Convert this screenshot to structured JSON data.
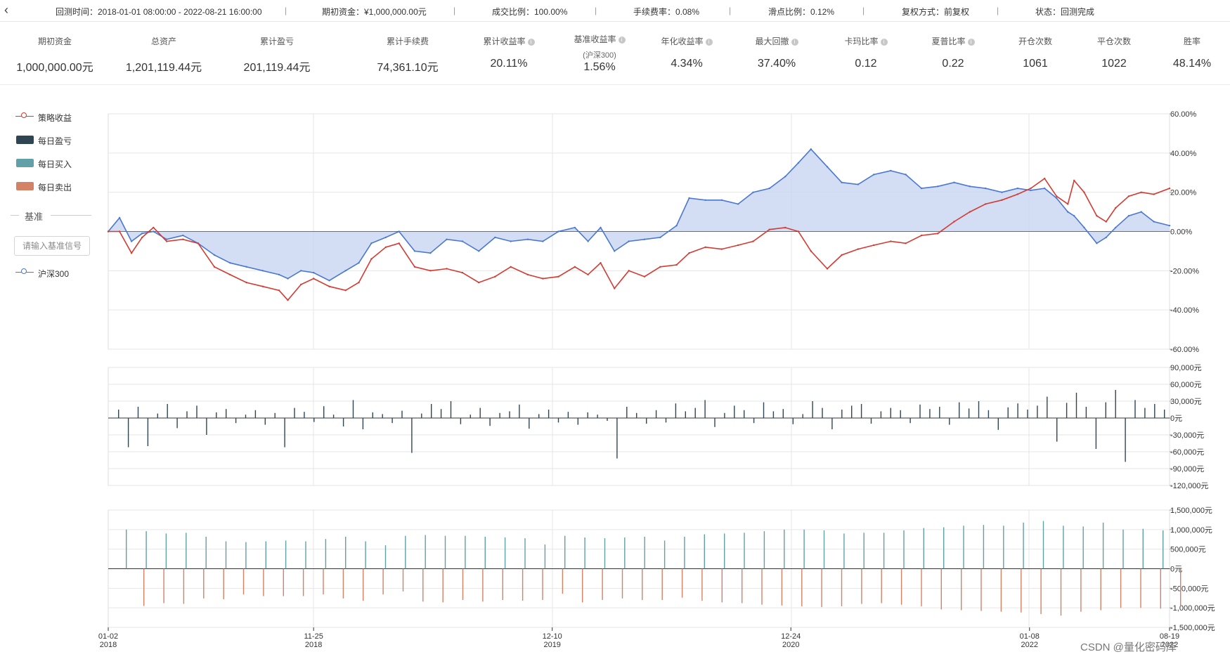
{
  "topbar": {
    "items": [
      "回测时间：2018-01-01 08:00:00 - 2022-08-21 16:00:00",
      "期初资金：¥1,000,000.00元",
      "成交比例：100.00%",
      "手续费率：0.08%",
      "滑点比例：0.12%",
      "复权方式：前复权",
      "状态：回测完成"
    ],
    "separators": [
      "|",
      "|",
      "|",
      "|",
      "|",
      "|"
    ]
  },
  "stats": [
    {
      "label": "期初资金",
      "value": "1,000,000.00元"
    },
    {
      "label": "总资产",
      "value": "1,201,119.44元"
    },
    {
      "label": "累计盈亏",
      "value": "201,119.44元"
    },
    {
      "label": "累计手续费",
      "value": "74,361.10元"
    },
    {
      "label": "累计收益率",
      "value": "20.11%",
      "info": "i"
    },
    {
      "label": "基准收益率",
      "sub": "(沪深300)",
      "value": "1.56%",
      "info": "i"
    },
    {
      "label": "年化收益率",
      "value": "4.34%",
      "info": "i"
    },
    {
      "label": "最大回撤",
      "value": "37.40%",
      "info": "i"
    },
    {
      "label": "卡玛比率",
      "value": "0.12",
      "info": "i"
    },
    {
      "label": "夏普比率",
      "value": "0.22",
      "info": "i"
    },
    {
      "label": "开仓次数",
      "value": "1061"
    },
    {
      "label": "平仓次数",
      "value": "1022"
    },
    {
      "label": "胜率",
      "value": "48.14%"
    }
  ],
  "legend": {
    "strategy": "策略收益",
    "daily_pnl": "每日盈亏",
    "daily_buy": "每日买入",
    "daily_sell": "每日卖出",
    "benchmark_header": "基准",
    "benchmark_input": "请输入基准信号",
    "benchmark": "沪深300"
  },
  "colors": {
    "strategy": "#d33a31",
    "benchmark": "#4a78d0",
    "benchmark_fill": "#c4d3f0",
    "pnl": "#2f4554",
    "buy": "#61a0a8",
    "sell": "#d48265",
    "grid": "#e6e6e6"
  },
  "chart_data": [
    {
      "type": "line",
      "y_unit": "%",
      "ylim": [
        -60,
        60
      ],
      "y_ticks": [
        "60.00%",
        "40.00%",
        "20.00%",
        "0.00%",
        "-20.00%",
        "-40.00%",
        "-60.00%"
      ],
      "x_labels": [
        {
          "date": "2018-01-02",
          "line1": "01-02",
          "line2": "2018"
        },
        {
          "date": "2018-11-25",
          "line1": "11-25",
          "line2": "2018"
        },
        {
          "date": "2019-12-10",
          "line1": "12-10",
          "line2": "2019"
        },
        {
          "date": "2020-12-24",
          "line1": "12-24",
          "line2": "2020"
        },
        {
          "date": "2022-01-08",
          "line1": "01-08",
          "line2": "2022"
        },
        {
          "date": "2022-08-19",
          "line1": "08-19",
          "line2": "2022"
        }
      ],
      "series": [
        {
          "name": "策略收益",
          "points": [
            [
              "2018-01-02",
              0
            ],
            [
              "2018-01-20",
              0
            ],
            [
              "2018-02-08",
              -11
            ],
            [
              "2018-02-25",
              -3
            ],
            [
              "2018-03-15",
              2
            ],
            [
              "2018-04-05",
              -5
            ],
            [
              "2018-05-01",
              -4
            ],
            [
              "2018-05-25",
              -6
            ],
            [
              "2018-06-20",
              -18
            ],
            [
              "2018-07-15",
              -22
            ],
            [
              "2018-08-10",
              -26
            ],
            [
              "2018-09-05",
              -28
            ],
            [
              "2018-10-01",
              -30
            ],
            [
              "2018-10-15",
              -35
            ],
            [
              "2018-11-05",
              -27
            ],
            [
              "2018-11-25",
              -24
            ],
            [
              "2018-12-20",
              -28
            ],
            [
              "2019-01-15",
              -30
            ],
            [
              "2019-02-05",
              -26
            ],
            [
              "2019-02-25",
              -14
            ],
            [
              "2019-03-20",
              -8
            ],
            [
              "2019-04-10",
              -6
            ],
            [
              "2019-05-05",
              -18
            ],
            [
              "2019-05-30",
              -20
            ],
            [
              "2019-06-25",
              -19
            ],
            [
              "2019-07-20",
              -21
            ],
            [
              "2019-08-15",
              -26
            ],
            [
              "2019-09-10",
              -23
            ],
            [
              "2019-10-05",
              -18
            ],
            [
              "2019-11-01",
              -22
            ],
            [
              "2019-11-25",
              -24
            ],
            [
              "2019-12-20",
              -23
            ],
            [
              "2020-01-15",
              -18
            ],
            [
              "2020-02-05",
              -22
            ],
            [
              "2020-02-25",
              -16
            ],
            [
              "2020-03-18",
              -29
            ],
            [
              "2020-04-10",
              -20
            ],
            [
              "2020-05-05",
              -23
            ],
            [
              "2020-05-30",
              -18
            ],
            [
              "2020-06-25",
              -17
            ],
            [
              "2020-07-15",
              -11
            ],
            [
              "2020-08-10",
              -8
            ],
            [
              "2020-09-05",
              -9
            ],
            [
              "2020-10-01",
              -7
            ],
            [
              "2020-10-25",
              -5
            ],
            [
              "2020-11-20",
              1
            ],
            [
              "2020-12-15",
              2
            ],
            [
              "2021-01-05",
              0
            ],
            [
              "2021-01-25",
              -10
            ],
            [
              "2021-02-20",
              -19
            ],
            [
              "2021-03-15",
              -12
            ],
            [
              "2021-04-10",
              -9
            ],
            [
              "2021-05-05",
              -7
            ],
            [
              "2021-06-01",
              -5
            ],
            [
              "2021-06-25",
              -6
            ],
            [
              "2021-07-20",
              -2
            ],
            [
              "2021-08-15",
              -1
            ],
            [
              "2021-09-10",
              5
            ],
            [
              "2021-10-05",
              10
            ],
            [
              "2021-10-30",
              14
            ],
            [
              "2021-11-25",
              16
            ],
            [
              "2021-12-20",
              19
            ],
            [
              "2022-01-10",
              22
            ],
            [
              "2022-02-01",
              27
            ],
            [
              "2022-02-20",
              18
            ],
            [
              "2022-03-10",
              14
            ],
            [
              "2022-03-20",
              26
            ],
            [
              "2022-04-05",
              20
            ],
            [
              "2022-04-25",
              8
            ],
            [
              "2022-05-10",
              5
            ],
            [
              "2022-05-25",
              12
            ],
            [
              "2022-06-15",
              18
            ],
            [
              "2022-07-05",
              20
            ],
            [
              "2022-07-25",
              19
            ],
            [
              "2022-08-19",
              22
            ]
          ]
        },
        {
          "name": "沪深300",
          "points": [
            [
              "2018-01-02",
              0
            ],
            [
              "2018-01-20",
              7
            ],
            [
              "2018-02-08",
              -5
            ],
            [
              "2018-02-25",
              -1
            ],
            [
              "2018-03-15",
              0
            ],
            [
              "2018-04-05",
              -4
            ],
            [
              "2018-05-01",
              -2
            ],
            [
              "2018-05-25",
              -6
            ],
            [
              "2018-06-20",
              -12
            ],
            [
              "2018-07-15",
              -16
            ],
            [
              "2018-08-10",
              -18
            ],
            [
              "2018-09-05",
              -20
            ],
            [
              "2018-10-01",
              -22
            ],
            [
              "2018-10-15",
              -24
            ],
            [
              "2018-11-05",
              -20
            ],
            [
              "2018-11-25",
              -21
            ],
            [
              "2018-12-20",
              -25
            ],
            [
              "2019-01-15",
              -20
            ],
            [
              "2019-02-05",
              -16
            ],
            [
              "2019-02-25",
              -6
            ],
            [
              "2019-03-20",
              -3
            ],
            [
              "2019-04-10",
              0
            ],
            [
              "2019-05-05",
              -10
            ],
            [
              "2019-05-30",
              -11
            ],
            [
              "2019-06-25",
              -4
            ],
            [
              "2019-07-20",
              -5
            ],
            [
              "2019-08-15",
              -10
            ],
            [
              "2019-09-10",
              -3
            ],
            [
              "2019-10-05",
              -5
            ],
            [
              "2019-11-01",
              -4
            ],
            [
              "2019-11-25",
              -5
            ],
            [
              "2019-12-20",
              0
            ],
            [
              "2020-01-15",
              2
            ],
            [
              "2020-02-05",
              -5
            ],
            [
              "2020-02-25",
              2
            ],
            [
              "2020-03-18",
              -10
            ],
            [
              "2020-04-10",
              -5
            ],
            [
              "2020-05-05",
              -4
            ],
            [
              "2020-05-30",
              -3
            ],
            [
              "2020-06-25",
              3
            ],
            [
              "2020-07-15",
              17
            ],
            [
              "2020-08-10",
              16
            ],
            [
              "2020-09-05",
              16
            ],
            [
              "2020-10-01",
              14
            ],
            [
              "2020-10-25",
              20
            ],
            [
              "2020-11-20",
              22
            ],
            [
              "2020-12-15",
              28
            ],
            [
              "2021-01-05",
              35
            ],
            [
              "2021-01-25",
              42
            ],
            [
              "2021-02-20",
              33
            ],
            [
              "2021-03-15",
              25
            ],
            [
              "2021-04-10",
              24
            ],
            [
              "2021-05-05",
              29
            ],
            [
              "2021-06-01",
              31
            ],
            [
              "2021-06-25",
              29
            ],
            [
              "2021-07-20",
              22
            ],
            [
              "2021-08-15",
              23
            ],
            [
              "2021-09-10",
              25
            ],
            [
              "2021-10-05",
              23
            ],
            [
              "2021-10-30",
              22
            ],
            [
              "2021-11-25",
              20
            ],
            [
              "2021-12-20",
              22
            ],
            [
              "2022-01-10",
              21
            ],
            [
              "2022-02-01",
              22
            ],
            [
              "2022-02-20",
              17
            ],
            [
              "2022-03-10",
              10
            ],
            [
              "2022-03-20",
              8
            ],
            [
              "2022-04-05",
              2
            ],
            [
              "2022-04-25",
              -6
            ],
            [
              "2022-05-10",
              -3
            ],
            [
              "2022-05-25",
              2
            ],
            [
              "2022-06-15",
              8
            ],
            [
              "2022-07-05",
              10
            ],
            [
              "2022-07-25",
              5
            ],
            [
              "2022-08-19",
              3
            ]
          ]
        }
      ]
    },
    {
      "type": "bar",
      "name": "每日盈亏",
      "y_unit": "元",
      "ylim": [
        -120000,
        90000
      ],
      "y_ticks": [
        "90,000元",
        "60,000元",
        "30,000元",
        "0元",
        "-30,000元",
        "-60,000元",
        "-90,000元",
        "-120,000元"
      ],
      "values": [
        15000,
        -52000,
        20000,
        -50000,
        8000,
        25000,
        -18000,
        12000,
        22000,
        -30000,
        10000,
        16000,
        -9000,
        6000,
        14000,
        -12000,
        9000,
        -52000,
        18000,
        11000,
        -7000,
        21000,
        6000,
        -15000,
        32000,
        -20000,
        10000,
        7000,
        -9000,
        13000,
        -62000,
        8000,
        25000,
        16000,
        30000,
        -11000,
        6000,
        18000,
        -14000,
        9000,
        12000,
        24000,
        -19000,
        7000,
        15000,
        -8000,
        11000,
        -12000,
        10000,
        6000,
        -5000,
        -72000,
        20000,
        9000,
        -10000,
        14000,
        -8000,
        26000,
        12000,
        18000,
        32000,
        -16000,
        9000,
        22000,
        14000,
        -9000,
        28000,
        12000,
        16000,
        -11000,
        7000,
        30000,
        18000,
        -20000,
        15000,
        22000,
        25000,
        -10000,
        12000,
        18000,
        14000,
        -9000,
        24000,
        16000,
        20000,
        -12000,
        28000,
        17000,
        30000,
        14000,
        -21000,
        19000,
        26000,
        15000,
        22000,
        38000,
        -42000,
        27000,
        45000,
        20000,
        -55000,
        28000,
        50000,
        -78000,
        32000,
        18000,
        25000,
        15000
      ]
    },
    {
      "type": "bar",
      "name": "每日买入/卖出",
      "y_unit": "元",
      "ylim": [
        -1500000,
        1500000
      ],
      "y_ticks": [
        "1,500,000元",
        "1,000,000元",
        "500,000元",
        "0元",
        "-500,000元",
        "-1,000,000元",
        "-1,500,000元"
      ],
      "series": [
        {
          "name": "每日买入",
          "values": [
            1000000,
            960000,
            900000,
            920000,
            820000,
            700000,
            680000,
            700000,
            720000,
            700000,
            760000,
            820000,
            700000,
            600000,
            840000,
            860000,
            840000,
            840000,
            820000,
            800000,
            780000,
            620000,
            840000,
            800000,
            780000,
            800000,
            820000,
            720000,
            820000,
            880000,
            900000,
            920000,
            960000,
            1000000,
            1000000,
            980000,
            900000,
            920000,
            920000,
            980000,
            1040000,
            1060000,
            1100000,
            1120000,
            1100000,
            1180000,
            1220000,
            1100000,
            1080000,
            1180000,
            1000000,
            1020000,
            980000
          ]
        },
        {
          "name": "每日卖出",
          "values": [
            -950000,
            -880000,
            -900000,
            -760000,
            -780000,
            -660000,
            -700000,
            -700000,
            -700000,
            -660000,
            -760000,
            -820000,
            -660000,
            -580000,
            -840000,
            -860000,
            -800000,
            -840000,
            -800000,
            -820000,
            -800000,
            -640000,
            -860000,
            -800000,
            -760000,
            -800000,
            -800000,
            -740000,
            -820000,
            -860000,
            -880000,
            -920000,
            -940000,
            -960000,
            -980000,
            -960000,
            -900000,
            -880000,
            -920000,
            -960000,
            -1040000,
            -1060000,
            -1080000,
            -1100000,
            -1120000,
            -1160000,
            -1200000,
            -1100000,
            -1060000,
            -1000000,
            -1000000,
            -1020000,
            -980000
          ]
        }
      ]
    }
  ],
  "watermark": "CSDN @量化密码库"
}
